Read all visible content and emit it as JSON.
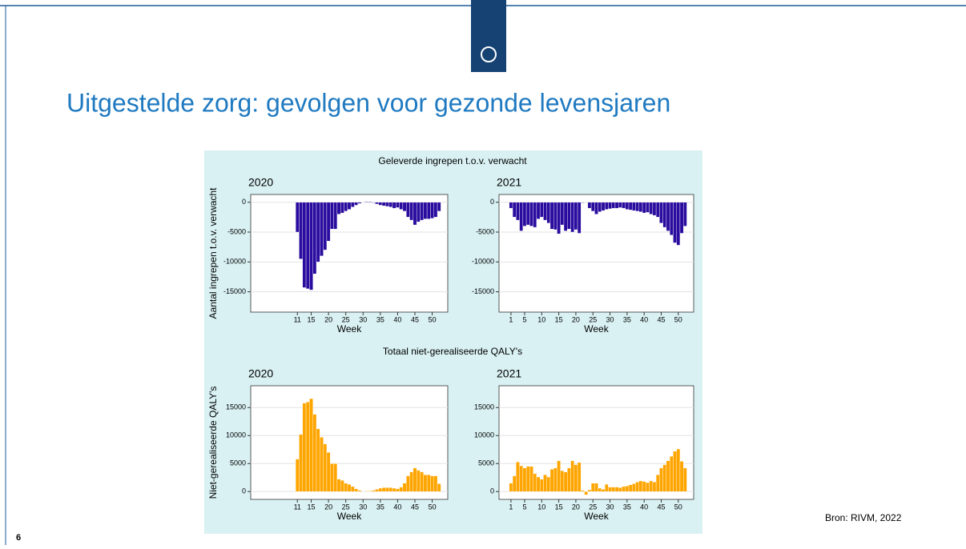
{
  "slide": {
    "title": "Uitgestelde zorg: gevolgen voor gezonde levensjaren",
    "page_number": "6",
    "source": "Bron: RIVM, 2022"
  },
  "panel_titles": [
    "Geleverde ingrepen t.o.v. verwacht",
    "Totaal niet-gerealiseerde QALY's"
  ],
  "chart_data": [
    {
      "type": "bar",
      "title": "2020",
      "ylabel": "Aantal ingrepen t.o.v. verwacht",
      "xlabel": "Week",
      "color": "#2a0c9e",
      "x": [
        11,
        12,
        13,
        14,
        15,
        16,
        17,
        18,
        19,
        20,
        21,
        22,
        23,
        24,
        25,
        26,
        27,
        28,
        29,
        30,
        31,
        32,
        33,
        34,
        35,
        36,
        37,
        38,
        39,
        40,
        41,
        42,
        43,
        44,
        45,
        46,
        47,
        48,
        49,
        50,
        51,
        52
      ],
      "values": [
        -5000,
        -9500,
        -14300,
        -14500,
        -14700,
        -12000,
        -10000,
        -9000,
        -8000,
        -6500,
        -4500,
        -4500,
        -2000,
        -1800,
        -1500,
        -1200,
        -800,
        -500,
        -200,
        0,
        100,
        100,
        -100,
        -300,
        -500,
        -600,
        -700,
        -800,
        -1000,
        -900,
        -1200,
        -1500,
        -2500,
        -3000,
        -3800,
        -3300,
        -3000,
        -2800,
        -2800,
        -2700,
        -2500,
        -1500
      ],
      "xlim": [
        -2.5,
        54.5
      ],
      "xticks": [
        11,
        15,
        20,
        25,
        30,
        35,
        40,
        45,
        50
      ],
      "ylim": [
        -18400,
        1300
      ],
      "yticks": [
        -15000,
        -10000,
        -5000,
        0
      ],
      "grid": true
    },
    {
      "type": "bar",
      "title": "2021",
      "xlabel": "Week",
      "color": "#2a0c9e",
      "x": [
        1,
        2,
        3,
        4,
        5,
        6,
        7,
        8,
        9,
        10,
        11,
        12,
        13,
        14,
        15,
        16,
        17,
        18,
        19,
        20,
        21,
        22,
        23,
        24,
        25,
        26,
        27,
        28,
        29,
        30,
        31,
        32,
        33,
        34,
        35,
        36,
        37,
        38,
        39,
        40,
        41,
        42,
        43,
        44,
        45,
        46,
        47,
        48,
        49,
        50,
        51,
        52
      ],
      "values": [
        -1000,
        -2500,
        -3000,
        -4800,
        -4000,
        -3800,
        -4000,
        -4200,
        -2800,
        -2500,
        -3000,
        -3500,
        -4500,
        -4600,
        -5300,
        -3800,
        -4800,
        -4500,
        -5000,
        -4600,
        -5200,
        -100,
        0,
        -1000,
        -1500,
        -2000,
        -1600,
        -1400,
        -1200,
        -1100,
        -1000,
        -1000,
        -900,
        -1000,
        -1200,
        -1300,
        -1400,
        -1500,
        -1600,
        -1800,
        -1700,
        -2000,
        -2200,
        -2500,
        -3500,
        -4200,
        -4800,
        -5500,
        -6800,
        -7200,
        -5200,
        -4000
      ],
      "xlim": [
        -2.5,
        54.5
      ],
      "xticks": [
        1,
        5,
        10,
        15,
        20,
        25,
        30,
        35,
        40,
        45,
        50
      ],
      "ylim": [
        -18400,
        1300
      ],
      "yticks": [
        -15000,
        -10000,
        -5000,
        0
      ],
      "grid": true
    },
    {
      "type": "bar",
      "title": "2020",
      "ylabel": "Niet-gerealiseerde QALY's",
      "xlabel": "Week",
      "color": "#ffa500",
      "x": [
        11,
        12,
        13,
        14,
        15,
        16,
        17,
        18,
        19,
        20,
        21,
        22,
        23,
        24,
        25,
        26,
        27,
        28,
        29,
        30,
        31,
        32,
        33,
        34,
        35,
        36,
        37,
        38,
        39,
        40,
        41,
        42,
        43,
        44,
        45,
        46,
        47,
        48,
        49,
        50,
        51,
        52
      ],
      "values": [
        5800,
        10200,
        15800,
        16000,
        16600,
        13800,
        11200,
        9700,
        8500,
        7000,
        5000,
        5000,
        2200,
        2000,
        1500,
        1300,
        900,
        500,
        200,
        0,
        100,
        100,
        200,
        400,
        600,
        700,
        700,
        700,
        600,
        500,
        800,
        1500,
        2800,
        3500,
        4200,
        3800,
        3500,
        3000,
        3000,
        2800,
        2800,
        1400
      ],
      "xlim": [
        -2.5,
        54.5
      ],
      "xticks": [
        11,
        15,
        20,
        25,
        30,
        35,
        40,
        45,
        50
      ],
      "ylim": [
        -1400,
        18900
      ],
      "yticks": [
        0,
        5000,
        10000,
        15000
      ],
      "grid": true
    },
    {
      "type": "bar",
      "title": "2021",
      "xlabel": "Week",
      "color": "#ffa500",
      "x": [
        1,
        2,
        3,
        4,
        5,
        6,
        7,
        8,
        9,
        10,
        11,
        12,
        13,
        14,
        15,
        16,
        17,
        18,
        19,
        20,
        21,
        22,
        23,
        24,
        25,
        26,
        27,
        28,
        29,
        30,
        31,
        32,
        33,
        34,
        35,
        36,
        37,
        38,
        39,
        40,
        41,
        42,
        43,
        44,
        45,
        46,
        47,
        48,
        49,
        50,
        51,
        52
      ],
      "values": [
        1500,
        2800,
        5300,
        4600,
        4200,
        4500,
        4500,
        3200,
        2600,
        2200,
        3000,
        2600,
        4000,
        4200,
        5500,
        3700,
        3500,
        4200,
        5500,
        4800,
        5200,
        200,
        -600,
        300,
        1500,
        1500,
        600,
        400,
        1300,
        800,
        800,
        800,
        700,
        900,
        1000,
        1200,
        1400,
        1700,
        1900,
        1800,
        1600,
        1900,
        1700,
        3000,
        4200,
        4800,
        5500,
        6300,
        7200,
        7600,
        5400,
        4200
      ],
      "xlim": [
        -2.5,
        54.5
      ],
      "xticks": [
        1,
        5,
        10,
        15,
        20,
        25,
        30,
        35,
        40,
        45,
        50
      ],
      "ylim": [
        -1400,
        18900
      ],
      "yticks": [
        0,
        5000,
        10000,
        15000
      ],
      "grid": true
    }
  ]
}
